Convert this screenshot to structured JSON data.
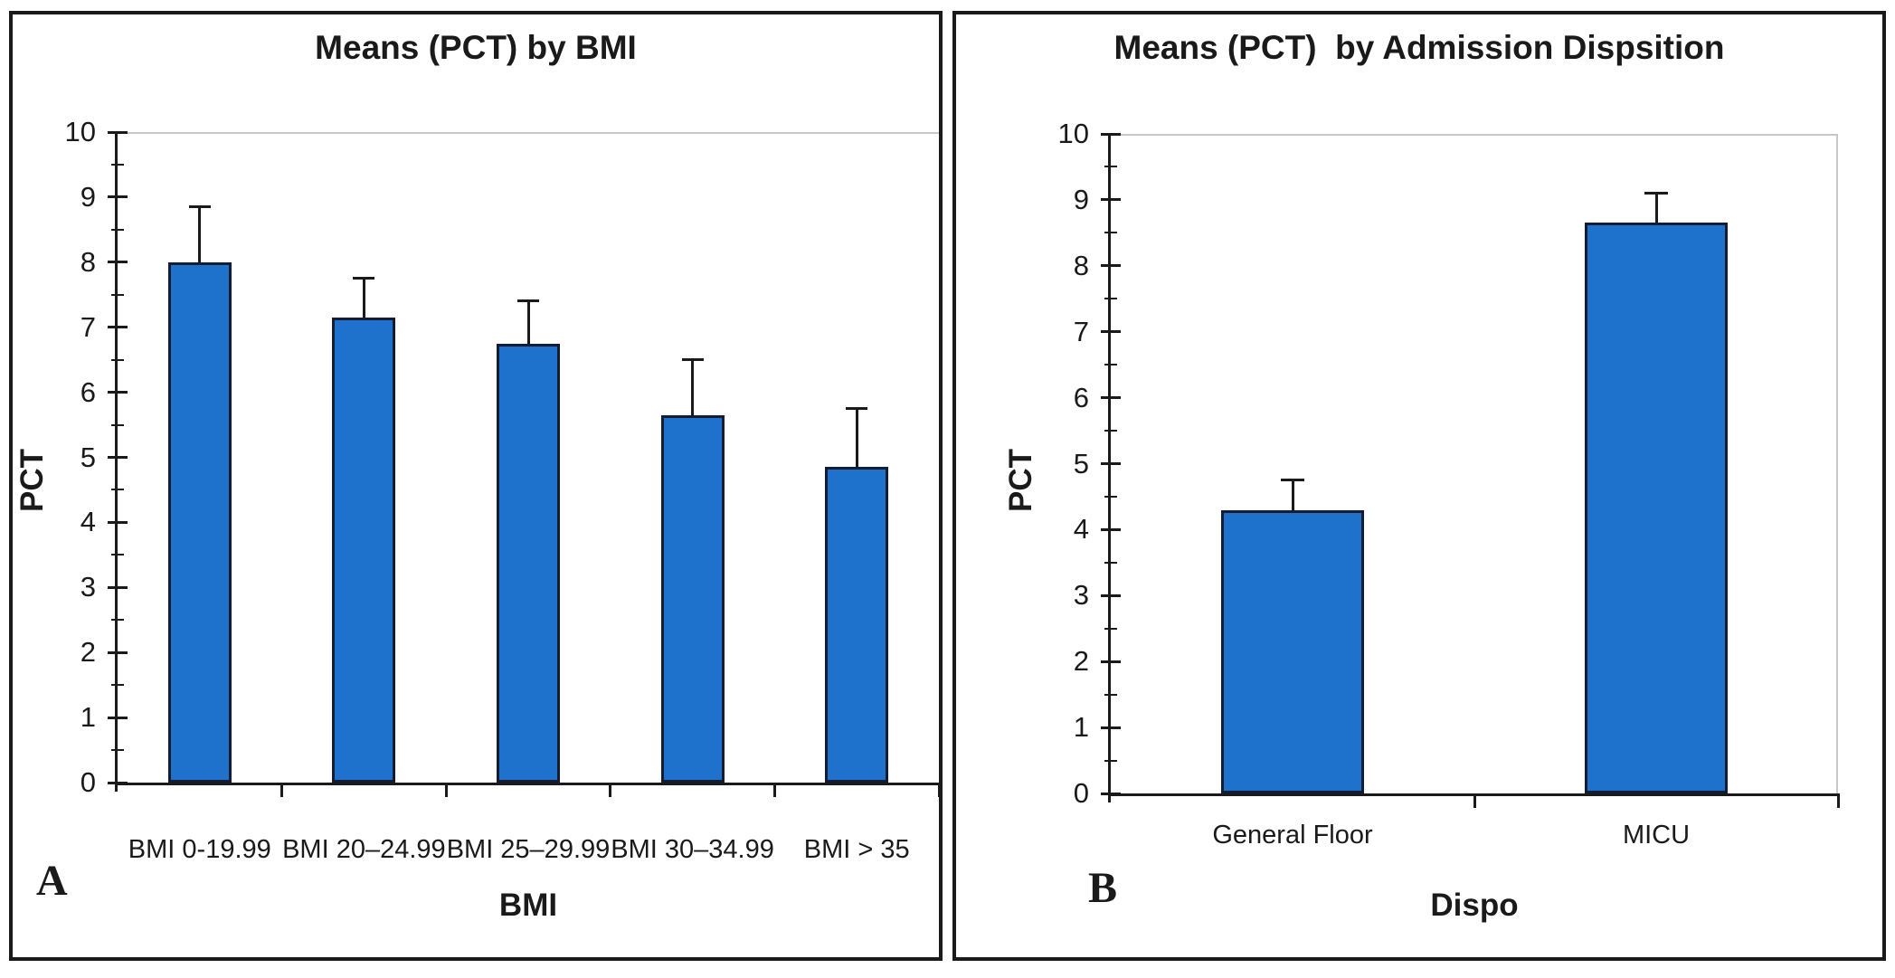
{
  "colors": {
    "bar_fill": "#1e72cb",
    "bar_border": "#131c33",
    "error_bar": "#1a1a1a",
    "gridline": "#c8c8c8",
    "axis": "#1a1a1a",
    "panel_border": "#1a1a1a",
    "background": "#ffffff",
    "text": "#1a1a1a"
  },
  "chart_data": [
    {
      "type": "bar",
      "panel_label": "A",
      "title": "Means (PCT) by BMI",
      "ylabel": "PCT",
      "xlabel": "BMI",
      "categories": [
        "BMI 0-19.99",
        "BMI 20–24.99",
        "BMI 25–29.99",
        "BMI 30–34.99",
        "BMI > 35"
      ],
      "values": [
        8.0,
        7.15,
        6.75,
        5.65,
        4.85
      ],
      "error_plus": [
        0.85,
        0.6,
        0.65,
        0.85,
        0.9
      ],
      "ylim": [
        0,
        10
      ],
      "yticks": [
        0,
        1,
        2,
        3,
        4,
        5,
        6,
        7,
        8,
        9,
        10
      ],
      "minor_tick_step": 0.5,
      "grid": "top-line-only",
      "legend": "none"
    },
    {
      "type": "bar",
      "panel_label": "B",
      "title": "Means (PCT)  by Admission Dispsition",
      "ylabel": "PCT",
      "xlabel": "Dispo",
      "categories": [
        "General Floor",
        "MICU"
      ],
      "values": [
        4.3,
        8.65
      ],
      "error_plus": [
        0.45,
        0.45
      ],
      "ylim": [
        0,
        10
      ],
      "yticks": [
        0,
        1,
        2,
        3,
        4,
        5,
        6,
        7,
        8,
        9,
        10
      ],
      "minor_tick_step": 0.5,
      "grid": "top-line-only",
      "legend": "none"
    }
  ]
}
